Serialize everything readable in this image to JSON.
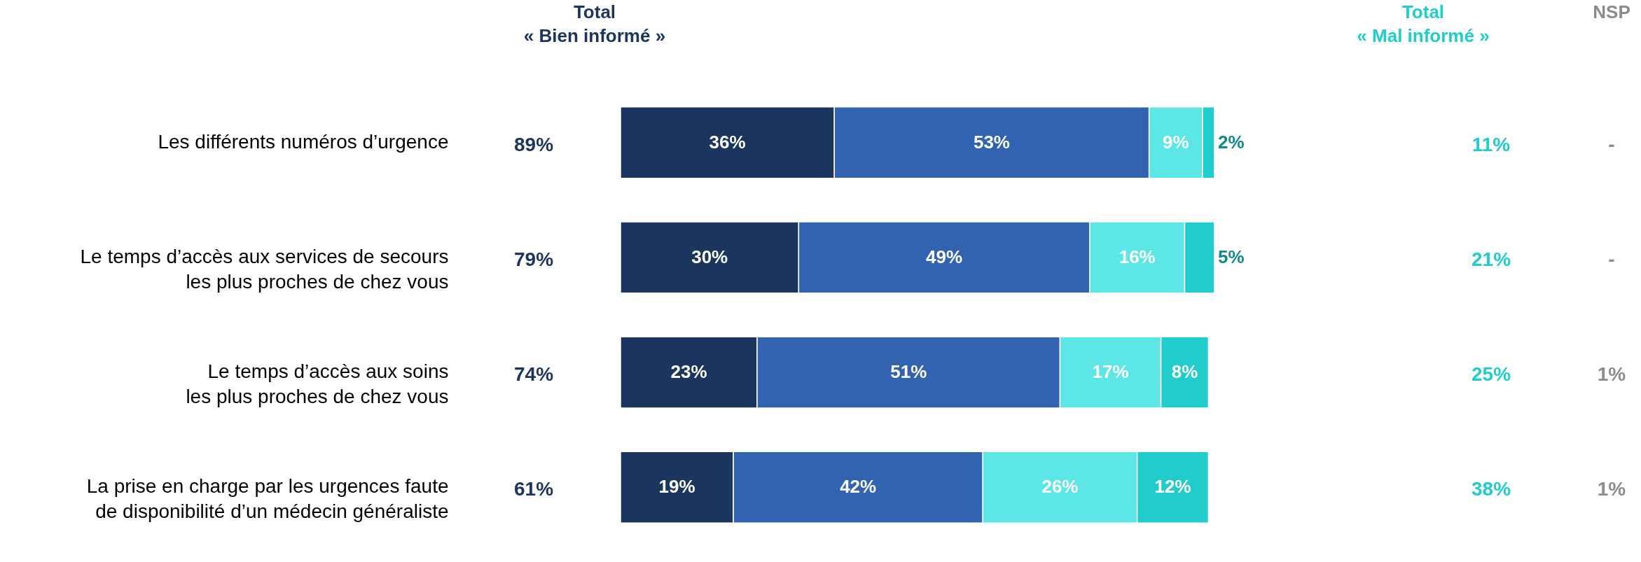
{
  "chart_data": {
    "type": "bar",
    "orientation": "horizontal",
    "stacked": true,
    "categories": [
      "Les différents numéros d’urgence",
      "Le temps d’accès aux services de secours\nles plus proches de chez vous",
      "Le temps d’accès aux soins\nles plus proches de chez vous",
      "La prise en charge par les urgences faute\nde disponibilité d’un médecin généraliste"
    ],
    "tick_labels": "y",
    "series": [
      {
        "color": "#1c355e",
        "values": [
          36,
          30,
          23,
          19
        ],
        "value_labels": [
          "36%",
          "30%",
          "23%",
          "19%"
        ]
      },
      {
        "color": "#3263b0",
        "values": [
          53,
          49,
          51,
          42
        ],
        "value_labels": [
          "53%",
          "49%",
          "51%",
          "42%"
        ]
      },
      {
        "color": "#5ce6e6",
        "values": [
          9,
          16,
          17,
          26
        ],
        "value_labels": [
          "9%",
          "16%",
          "17%",
          "26%"
        ]
      },
      {
        "color": "#20cccc",
        "values": [
          2,
          5,
          8,
          12
        ],
        "value_labels": [
          "2%",
          "5%",
          "8%",
          "12%"
        ]
      }
    ],
    "annotations": [
      "Total\n« Bien informé »",
      "Total\n« Mal informé »",
      "NSP",
      "89%",
      "79%",
      "74%",
      "61%",
      "11%",
      "21%",
      "25%",
      "38%",
      "-",
      "-",
      "1%",
      "1%"
    ]
  }
}
